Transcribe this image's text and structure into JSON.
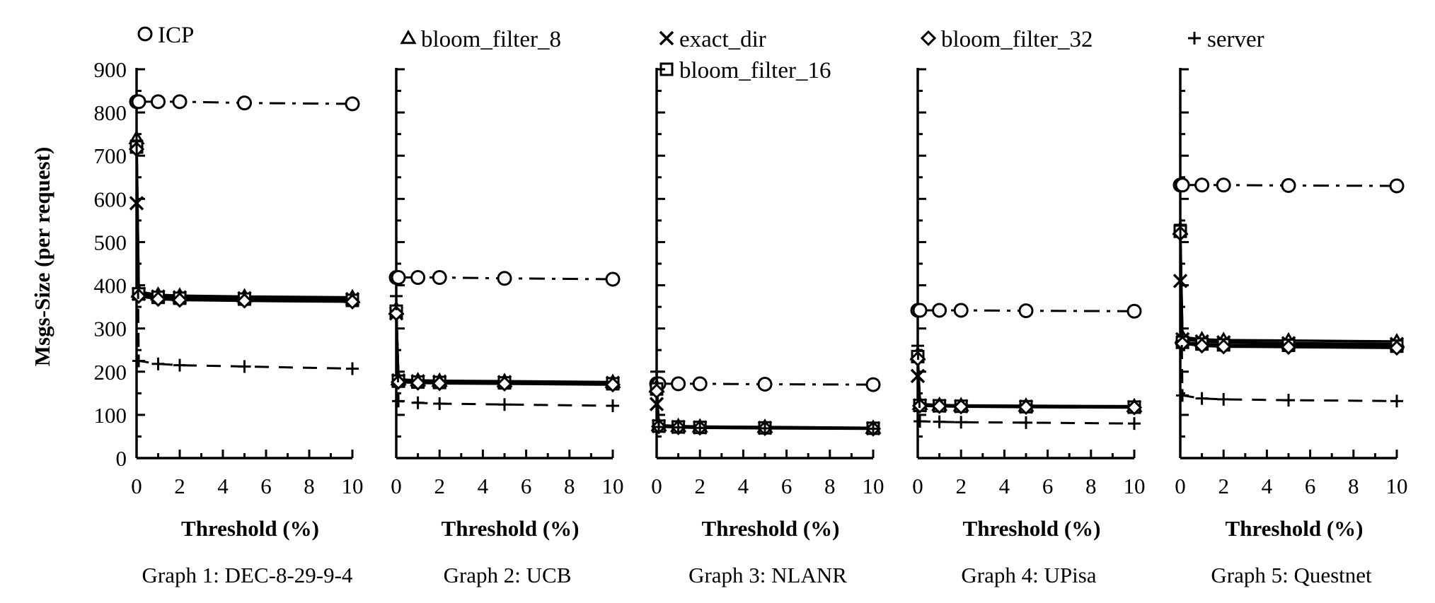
{
  "legend": [
    {
      "key": "ICP",
      "label": "ICP",
      "marker": "circle-icon"
    },
    {
      "key": "bloom_filter_8",
      "label": "bloom_filter_8",
      "marker": "triangle-icon"
    },
    {
      "key": "exact_dir",
      "label": "exact_dir",
      "marker": "x-icon"
    },
    {
      "key": "bloom_filter_16",
      "label": "bloom_filter_16",
      "marker": "square-icon"
    },
    {
      "key": "bloom_filter_32",
      "label": "bloom_filter_32",
      "marker": "diamond-icon"
    },
    {
      "key": "server",
      "label": "server",
      "marker": "plus-icon"
    }
  ],
  "ylabel": "Msgs-Size (per request)",
  "chart_data": [
    {
      "type": "line",
      "caption": "Graph 1: DEC-8-29-9-4",
      "xlabel": "Threshold (%)",
      "ylabel": "Msgs-Size (per request)",
      "xlim": [
        0,
        10
      ],
      "ylim": [
        0,
        900
      ],
      "x_ticks": [
        0,
        2,
        4,
        6,
        8,
        10
      ],
      "y_ticks": [
        0,
        100,
        200,
        300,
        400,
        500,
        600,
        700,
        800,
        900
      ],
      "x": [
        0,
        0.1,
        1,
        2,
        5,
        10
      ],
      "series": [
        {
          "name": "ICP",
          "values": [
            825,
            825,
            825,
            825,
            822,
            820
          ]
        },
        {
          "name": "bloom_filter_8",
          "values": [
            740,
            385,
            378,
            376,
            374,
            372
          ]
        },
        {
          "name": "exact_dir",
          "values": [
            590,
            380,
            374,
            372,
            370,
            368
          ]
        },
        {
          "name": "bloom_filter_16",
          "values": [
            720,
            380,
            372,
            370,
            368,
            365
          ]
        },
        {
          "name": "bloom_filter_32",
          "values": [
            715,
            375,
            368,
            366,
            364,
            362
          ]
        },
        {
          "name": "server",
          "values": [
            735,
            225,
            218,
            215,
            212,
            207
          ]
        }
      ]
    },
    {
      "type": "line",
      "caption": "Graph 2: UCB",
      "xlabel": "Threshold (%)",
      "xlim": [
        0,
        10
      ],
      "ylim": [
        0,
        900
      ],
      "x_ticks": [
        0,
        2,
        4,
        6,
        8,
        10
      ],
      "x": [
        0,
        0.1,
        1,
        2,
        5,
        10
      ],
      "series": [
        {
          "name": "ICP",
          "values": [
            418,
            418,
            418,
            418,
            416,
            414
          ]
        },
        {
          "name": "bloom_filter_8",
          "values": [
            345,
            182,
            180,
            179,
            178,
            176
          ]
        },
        {
          "name": "exact_dir",
          "values": [
            335,
            180,
            178,
            177,
            176,
            174
          ]
        },
        {
          "name": "bloom_filter_16",
          "values": [
            340,
            178,
            176,
            175,
            174,
            172
          ]
        },
        {
          "name": "bloom_filter_32",
          "values": [
            335,
            176,
            174,
            173,
            172,
            170
          ]
        },
        {
          "name": "server",
          "values": [
            375,
            132,
            128,
            126,
            124,
            121
          ]
        }
      ]
    },
    {
      "type": "line",
      "caption": "Graph 3: NLANR",
      "xlabel": "Threshold (%)",
      "xlim": [
        0,
        10
      ],
      "ylim": [
        0,
        900
      ],
      "x_ticks": [
        0,
        2,
        4,
        6,
        8,
        10
      ],
      "x": [
        0,
        0.1,
        1,
        2,
        5,
        10
      ],
      "series": [
        {
          "name": "ICP",
          "values": [
            172,
            172,
            172,
            172,
            171,
            170
          ]
        },
        {
          "name": "bloom_filter_8",
          "values": [
            165,
            76,
            74,
            73,
            72,
            70
          ]
        },
        {
          "name": "exact_dir",
          "values": [
            125,
            74,
            72,
            71,
            70,
            69
          ]
        },
        {
          "name": "bloom_filter_16",
          "values": [
            160,
            74,
            72,
            71,
            70,
            69
          ]
        },
        {
          "name": "bloom_filter_32",
          "values": [
            155,
            73,
            71,
            70,
            69,
            68
          ]
        },
        {
          "name": "server",
          "values": [
            200,
            72,
            71,
            70,
            69,
            68
          ]
        }
      ]
    },
    {
      "type": "line",
      "caption": "Graph 4: UPisa",
      "xlabel": "Threshold (%)",
      "xlim": [
        0,
        10
      ],
      "ylim": [
        0,
        900
      ],
      "x_ticks": [
        0,
        2,
        4,
        6,
        8,
        10
      ],
      "x": [
        0,
        0.1,
        1,
        2,
        5,
        10
      ],
      "series": [
        {
          "name": "ICP",
          "values": [
            342,
            342,
            342,
            342,
            341,
            340
          ]
        },
        {
          "name": "bloom_filter_8",
          "values": [
            240,
            125,
            123,
            122,
            121,
            120
          ]
        },
        {
          "name": "exact_dir",
          "values": [
            190,
            122,
            121,
            120,
            119,
            118
          ]
        },
        {
          "name": "bloom_filter_16",
          "values": [
            235,
            122,
            121,
            120,
            119,
            118
          ]
        },
        {
          "name": "bloom_filter_32",
          "values": [
            230,
            121,
            120,
            119,
            118,
            117
          ]
        },
        {
          "name": "server",
          "values": [
            260,
            85,
            84,
            83,
            82,
            80
          ]
        }
      ]
    },
    {
      "type": "line",
      "caption": "Graph 5: Questnet",
      "xlabel": "Threshold (%)",
      "xlim": [
        0,
        10
      ],
      "ylim": [
        0,
        900
      ],
      "x_ticks": [
        0,
        2,
        4,
        6,
        8,
        10
      ],
      "x": [
        0,
        0.1,
        1,
        2,
        5,
        10
      ],
      "series": [
        {
          "name": "ICP",
          "values": [
            632,
            632,
            632,
            632,
            631,
            630
          ]
        },
        {
          "name": "bloom_filter_8",
          "values": [
            530,
            280,
            275,
            273,
            272,
            270
          ]
        },
        {
          "name": "exact_dir",
          "values": [
            410,
            275,
            270,
            268,
            266,
            264
          ]
        },
        {
          "name": "bloom_filter_16",
          "values": [
            525,
            268,
            264,
            262,
            261,
            259
          ]
        },
        {
          "name": "bloom_filter_32",
          "values": [
            520,
            265,
            260,
            258,
            257,
            255
          ]
        },
        {
          "name": "server",
          "values": [
            540,
            145,
            138,
            136,
            134,
            132
          ]
        }
      ]
    }
  ]
}
